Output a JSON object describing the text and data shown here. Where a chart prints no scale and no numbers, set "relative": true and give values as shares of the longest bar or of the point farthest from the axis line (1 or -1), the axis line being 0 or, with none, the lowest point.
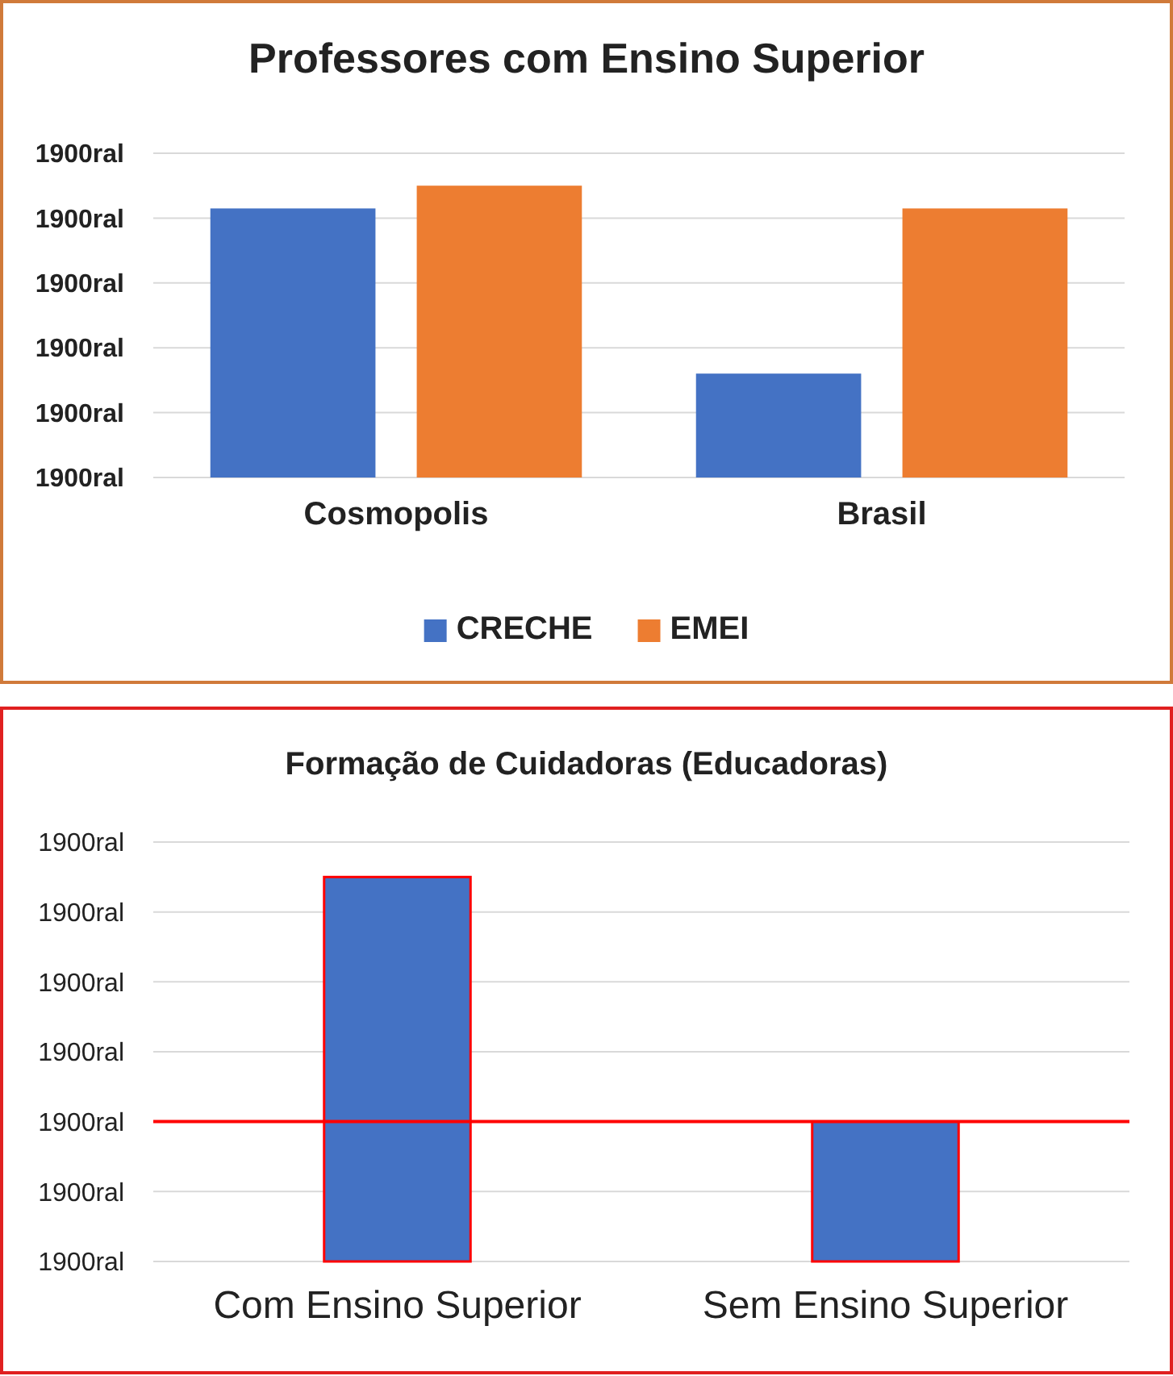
{
  "chart_data": [
    {
      "type": "bar",
      "title": "Professores com Ensino Superior",
      "categories": [
        "Cosmopolis",
        "Brasil"
      ],
      "series": [
        {
          "name": "CRECHE",
          "color": "#4472c4",
          "values": [
            0.922,
            0.356
          ]
        },
        {
          "name": "EMEI",
          "color": "#ed7d31",
          "values": [
            1,
            0.922
          ]
        }
      ],
      "relative": true,
      "annotations": [
        "1900ral",
        "1900ral",
        "1900ral",
        "1900ral",
        "1900ral",
        "1900ral"
      ],
      "grid": "y",
      "legend": "bottom"
    },
    {
      "type": "bar",
      "title": "Formação de Cuidadoras (Educadoras)",
      "categories": [
        "Com Ensino Superior",
        "Sem Ensino Superior"
      ],
      "series": [
        {
          "color": "#4472c4",
          "values": [
            1,
            0.364
          ]
        }
      ],
      "relative": true,
      "annotations": [
        "1900ral",
        "1900ral",
        "1900ral",
        "1900ral",
        "1900ral",
        "1900ral",
        "1900ral"
      ],
      "grid": "y",
      "ref_lines": [
        {
          "axis": "y",
          "value": 0.364,
          "color": "#ff0000"
        }
      ]
    }
  ]
}
